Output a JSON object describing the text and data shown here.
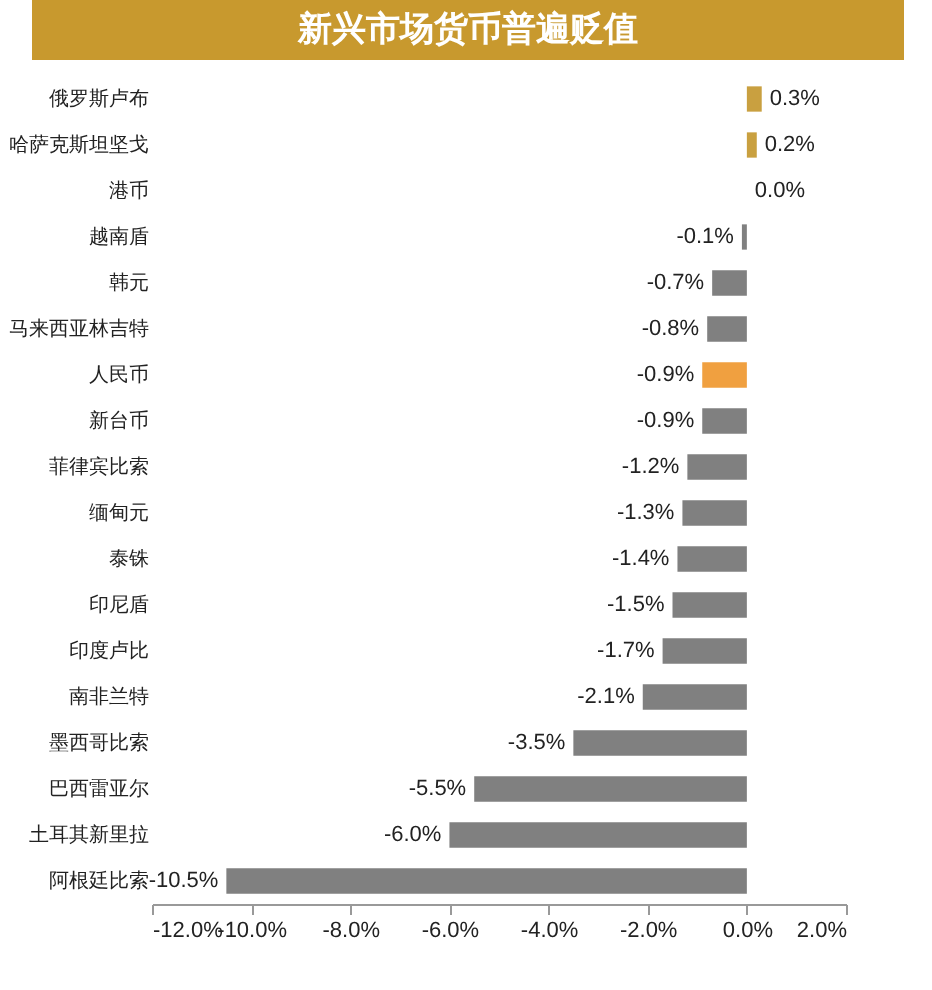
{
  "chart_data": {
    "type": "bar",
    "orientation": "horizontal",
    "title": "新兴市场货币普遍贬值",
    "categories": [
      "俄罗斯卢布",
      "哈萨克斯坦坚戈",
      "港币",
      "越南盾",
      "韩元",
      "马来西亚林吉特",
      "人民币",
      "新台币",
      "菲律宾比索",
      "缅甸元",
      "泰铢",
      "印尼盾",
      "印度卢比",
      "南非兰特",
      "墨西哥比索",
      "巴西雷亚尔",
      "土耳其新里拉",
      "阿根廷比索"
    ],
    "values": [
      0.3,
      0.2,
      0.0,
      -0.1,
      -0.7,
      -0.8,
      -0.9,
      -0.9,
      -1.2,
      -1.3,
      -1.4,
      -1.5,
      -1.7,
      -2.1,
      -3.5,
      -5.5,
      -6.0,
      -10.5
    ],
    "colors": [
      "#c9a040",
      "#c9a040",
      "#808080",
      "#808080",
      "#808080",
      "#808080",
      "#f0a040",
      "#808080",
      "#808080",
      "#808080",
      "#808080",
      "#808080",
      "#808080",
      "#808080",
      "#808080",
      "#808080",
      "#808080",
      "#808080"
    ],
    "value_labels": [
      "0.3%",
      "0.2%",
      "0.0%",
      "-0.1%",
      "-0.7%",
      "-0.8%",
      "-0.9%",
      "-0.9%",
      "-1.2%",
      "-1.3%",
      "-1.4%",
      "-1.5%",
      "-1.7%",
      "-2.1%",
      "-3.5%",
      "-5.5%",
      "-6.0%",
      "-10.5%"
    ],
    "xlim": [
      -12,
      2
    ],
    "xticks": [
      {
        "value": -12,
        "label": "-12.0%"
      },
      {
        "value": -10,
        "label": "-10.0%"
      },
      {
        "value": -8,
        "label": "-8.0%"
      },
      {
        "value": -6,
        "label": "-6.0%"
      },
      {
        "value": -4,
        "label": "-4.0%"
      },
      {
        "value": -2,
        "label": "-2.0%"
      },
      {
        "value": 0,
        "label": "0.0%"
      },
      {
        "value": 2,
        "label": "2.0%"
      }
    ],
    "grid": false
  }
}
